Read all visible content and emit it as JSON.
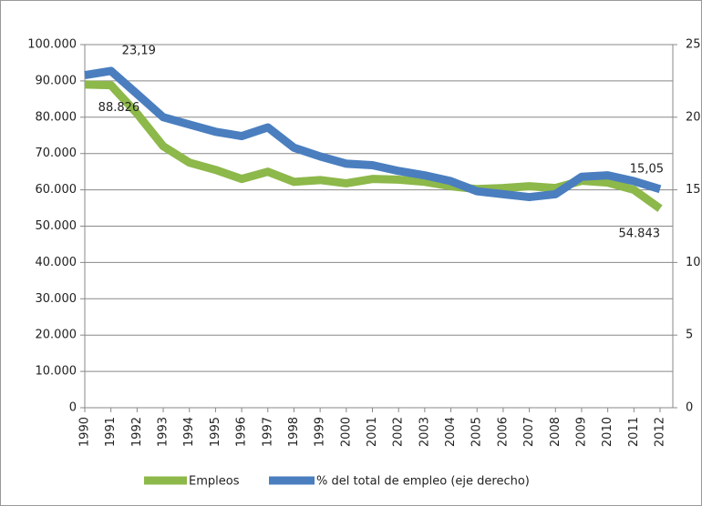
{
  "chart_data": {
    "type": "line",
    "categories": [
      "1990",
      "1991",
      "1992",
      "1993",
      "1994",
      "1995",
      "1996",
      "1997",
      "1998",
      "1999",
      "2000",
      "2001",
      "2002",
      "2003",
      "2004",
      "2005",
      "2006",
      "2007",
      "2008",
      "2009",
      "2010",
      "2011",
      "2012"
    ],
    "series": [
      {
        "name": "Empleos",
        "color": "#8db84a",
        "axis": "y",
        "values": [
          89000,
          88826,
          81000,
          72000,
          67500,
          65500,
          63000,
          65000,
          62200,
          62700,
          61800,
          63000,
          62800,
          62200,
          61000,
          60200,
          60500,
          61000,
          60500,
          62500,
          62000,
          60000,
          54843
        ],
        "value_labels": [
          null,
          "88.826",
          null,
          null,
          null,
          null,
          null,
          null,
          null,
          null,
          null,
          null,
          null,
          null,
          null,
          null,
          null,
          null,
          null,
          null,
          null,
          null,
          "54.843"
        ]
      },
      {
        "name": "% del total  de empleo (eje derecho)",
        "color": "#4a7ebf",
        "axis": "y2",
        "values": [
          22.9,
          23.19,
          21.6,
          20.0,
          19.5,
          19.0,
          18.7,
          19.3,
          17.9,
          17.3,
          16.8,
          16.7,
          16.3,
          16.0,
          15.6,
          14.9,
          14.7,
          14.5,
          14.7,
          15.9,
          16.0,
          15.6,
          15.05
        ],
        "value_labels": [
          null,
          "23,19",
          null,
          null,
          null,
          null,
          null,
          null,
          null,
          null,
          null,
          null,
          null,
          null,
          null,
          null,
          null,
          null,
          null,
          null,
          null,
          null,
          "15,05"
        ]
      }
    ],
    "ylim": [
      0,
      100000
    ],
    "yticks": [
      0,
      {
        "value": 10000,
        "label": "10.000"
      },
      {
        "value": 20000,
        "label": "20.000"
      },
      {
        "value": 30000,
        "label": "30.000"
      },
      {
        "value": 40000,
        "label": "40.000"
      },
      {
        "value": 50000,
        "label": "50.000"
      },
      {
        "value": 60000,
        "label": "60.000"
      },
      {
        "value": 70000,
        "label": "70.000"
      },
      {
        "value": 80000,
        "label": "80.000"
      },
      {
        "value": 90000,
        "label": "90.000"
      },
      {
        "value": 100000,
        "label": "100.000"
      }
    ],
    "y2lim": [
      0,
      25
    ],
    "y2ticks": [
      0,
      5,
      10,
      15,
      20,
      25
    ],
    "grid": true,
    "legend": "bottom"
  }
}
